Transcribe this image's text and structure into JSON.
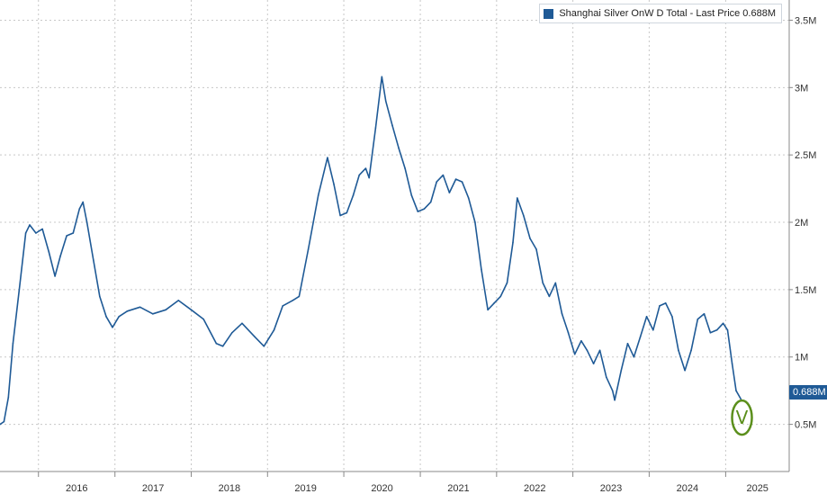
{
  "chart_data": {
    "type": "line",
    "title": "",
    "xlabel": "",
    "ylabel": "",
    "x_axis": {
      "ticks": [
        "2016",
        "2017",
        "2018",
        "2019",
        "2020",
        "2021",
        "2022",
        "2023",
        "2024",
        "2025"
      ],
      "range": [
        "2015-07-01",
        "2025-11-01"
      ]
    },
    "y_axis": {
      "ticks": [
        "0.5M",
        "1M",
        "1.5M",
        "2M",
        "2.5M",
        "3M",
        "3.5M"
      ],
      "tick_values": [
        0.5,
        1,
        1.5,
        2,
        2.5,
        3,
        3.5
      ],
      "unit": "M",
      "range": [
        0.15,
        3.65
      ],
      "position": "right"
    },
    "grid": true,
    "legend": {
      "position": "top-right",
      "label": "Shanghai Silver OnW D Total - Last Price 0.688M"
    },
    "last_price_label": "0.688M",
    "series": [
      {
        "name": "Shanghai Silver OnW D Total - Last Price 0.688M",
        "color": "#1f5a96",
        "points": [
          [
            "2015-07-01",
            0.5
          ],
          [
            "2015-07-20",
            0.52
          ],
          [
            "2015-08-10",
            0.7
          ],
          [
            "2015-09-01",
            1.1
          ],
          [
            "2015-10-01",
            1.5
          ],
          [
            "2015-11-01",
            1.92
          ],
          [
            "2015-11-20",
            1.98
          ],
          [
            "2015-12-20",
            1.92
          ],
          [
            "2016-01-20",
            1.95
          ],
          [
            "2016-02-20",
            1.78
          ],
          [
            "2016-03-20",
            1.6
          ],
          [
            "2016-04-15",
            1.75
          ],
          [
            "2016-05-15",
            1.9
          ],
          [
            "2016-06-15",
            1.92
          ],
          [
            "2016-07-15",
            2.1
          ],
          [
            "2016-08-01",
            2.15
          ],
          [
            "2016-08-20",
            2.0
          ],
          [
            "2016-09-20",
            1.72
          ],
          [
            "2016-10-20",
            1.45
          ],
          [
            "2016-11-20",
            1.3
          ],
          [
            "2016-12-20",
            1.22
          ],
          [
            "2017-01-20",
            1.3
          ],
          [
            "2017-03-01",
            1.34
          ],
          [
            "2017-05-01",
            1.37
          ],
          [
            "2017-07-01",
            1.32
          ],
          [
            "2017-09-01",
            1.35
          ],
          [
            "2017-11-01",
            1.42
          ],
          [
            "2018-01-01",
            1.35
          ],
          [
            "2018-03-01",
            1.28
          ],
          [
            "2018-05-01",
            1.1
          ],
          [
            "2018-06-01",
            1.08
          ],
          [
            "2018-07-15",
            1.18
          ],
          [
            "2018-09-01",
            1.25
          ],
          [
            "2018-11-01",
            1.15
          ],
          [
            "2018-12-15",
            1.08
          ],
          [
            "2019-02-01",
            1.2
          ],
          [
            "2019-03-15",
            1.38
          ],
          [
            "2019-05-01",
            1.42
          ],
          [
            "2019-06-01",
            1.45
          ],
          [
            "2019-07-15",
            1.8
          ],
          [
            "2019-09-01",
            2.2
          ],
          [
            "2019-10-15",
            2.48
          ],
          [
            "2019-11-15",
            2.28
          ],
          [
            "2019-12-15",
            2.05
          ],
          [
            "2020-01-15",
            2.07
          ],
          [
            "2020-02-15",
            2.2
          ],
          [
            "2020-03-15",
            2.35
          ],
          [
            "2020-04-15",
            2.4
          ],
          [
            "2020-05-01",
            2.33
          ],
          [
            "2020-06-01",
            2.7
          ],
          [
            "2020-07-01",
            3.08
          ],
          [
            "2020-07-20",
            2.9
          ],
          [
            "2020-08-20",
            2.72
          ],
          [
            "2020-09-20",
            2.55
          ],
          [
            "2020-10-20",
            2.4
          ],
          [
            "2020-11-20",
            2.2
          ],
          [
            "2020-12-20",
            2.08
          ],
          [
            "2021-01-20",
            2.1
          ],
          [
            "2021-02-20",
            2.15
          ],
          [
            "2021-03-20",
            2.3
          ],
          [
            "2021-04-20",
            2.35
          ],
          [
            "2021-05-20",
            2.22
          ],
          [
            "2021-06-20",
            2.32
          ],
          [
            "2021-07-20",
            2.3
          ],
          [
            "2021-08-20",
            2.18
          ],
          [
            "2021-09-20",
            2.0
          ],
          [
            "2021-10-20",
            1.65
          ],
          [
            "2021-11-20",
            1.35
          ],
          [
            "2021-12-20",
            1.4
          ],
          [
            "2022-01-20",
            1.45
          ],
          [
            "2022-02-20",
            1.55
          ],
          [
            "2022-03-20",
            1.85
          ],
          [
            "2022-04-10",
            2.18
          ],
          [
            "2022-05-10",
            2.05
          ],
          [
            "2022-06-10",
            1.88
          ],
          [
            "2022-07-10",
            1.8
          ],
          [
            "2022-08-10",
            1.55
          ],
          [
            "2022-09-10",
            1.45
          ],
          [
            "2022-10-10",
            1.55
          ],
          [
            "2022-11-10",
            1.32
          ],
          [
            "2022-12-10",
            1.18
          ],
          [
            "2023-01-10",
            1.02
          ],
          [
            "2023-02-10",
            1.12
          ],
          [
            "2023-03-10",
            1.05
          ],
          [
            "2023-04-10",
            0.95
          ],
          [
            "2023-05-10",
            1.05
          ],
          [
            "2023-06-10",
            0.85
          ],
          [
            "2023-07-10",
            0.75
          ],
          [
            "2023-07-20",
            0.68
          ],
          [
            "2023-08-20",
            0.9
          ],
          [
            "2023-09-20",
            1.1
          ],
          [
            "2023-10-20",
            1.0
          ],
          [
            "2023-11-20",
            1.15
          ],
          [
            "2023-12-20",
            1.3
          ],
          [
            "2024-01-20",
            1.2
          ],
          [
            "2024-02-20",
            1.38
          ],
          [
            "2024-03-20",
            1.4
          ],
          [
            "2024-04-20",
            1.3
          ],
          [
            "2024-05-20",
            1.05
          ],
          [
            "2024-06-20",
            0.9
          ],
          [
            "2024-07-20",
            1.05
          ],
          [
            "2024-08-20",
            1.28
          ],
          [
            "2024-09-20",
            1.32
          ],
          [
            "2024-10-20",
            1.18
          ],
          [
            "2024-11-20",
            1.2
          ],
          [
            "2024-12-20",
            1.25
          ],
          [
            "2025-01-10",
            1.2
          ],
          [
            "2025-02-01",
            0.95
          ],
          [
            "2025-02-20",
            0.75
          ],
          [
            "2025-03-15",
            0.688
          ]
        ]
      }
    ],
    "annotations": [
      {
        "type": "circle",
        "label": "V",
        "color": "#5b8f1c",
        "at": [
          "2025-03-20",
          0.55
        ]
      }
    ]
  }
}
